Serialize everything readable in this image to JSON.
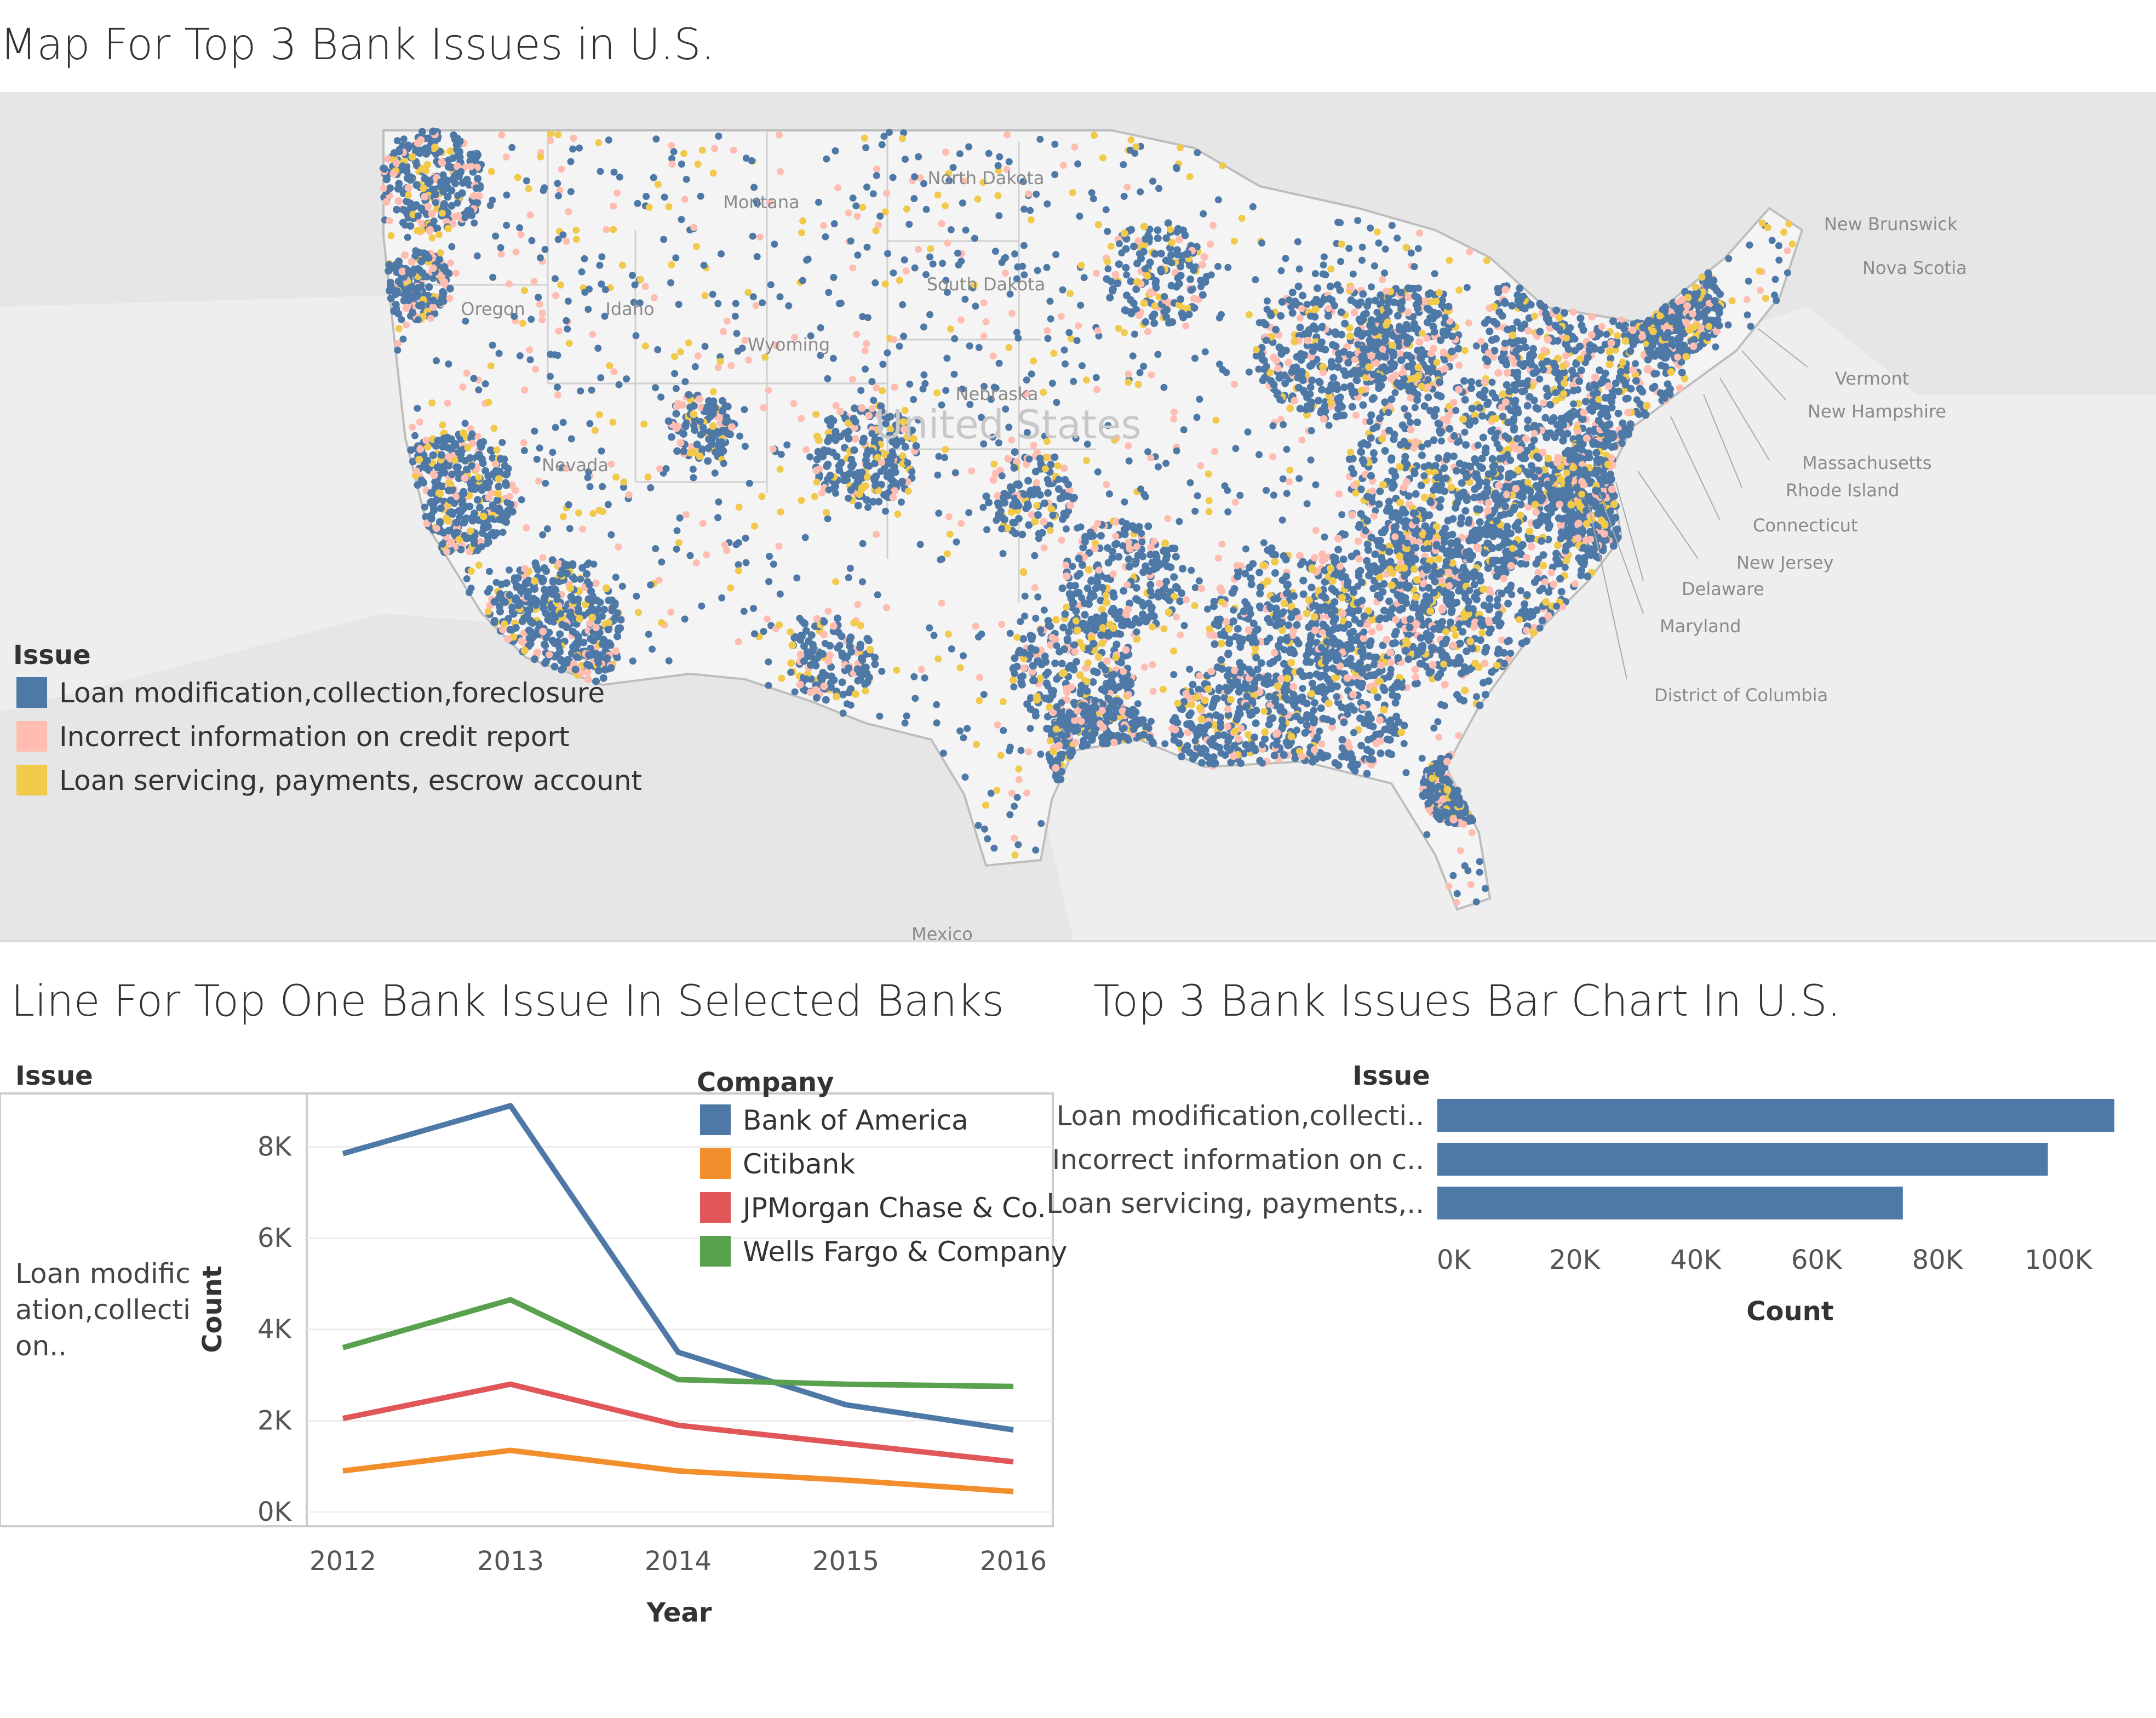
{
  "map": {
    "title": "Map For Top  3  Bank Issues in U.S.",
    "legend": {
      "title": "Issue",
      "items": [
        {
          "label": "Loan modification,collection,foreclosure",
          "color": "#4e79a7"
        },
        {
          "label": "Incorrect information on credit report",
          "color": "#ffbcb0"
        },
        {
          "label": "Loan servicing, payments, escrow account",
          "color": "#f1c94b"
        }
      ]
    },
    "labels": [
      "North Dakota",
      "South Dakota",
      "Montana",
      "Idaho",
      "Oregon",
      "Wyoming",
      "Nebraska",
      "Nevada",
      "United States",
      "New Brunswick",
      "Nova Scotia",
      "Vermont",
      "New Hampshire",
      "Massachusetts",
      "Rhode Island",
      "Connecticut",
      "New Jersey",
      "Delaware",
      "Maryland",
      "District of Columbia",
      "Mexico"
    ]
  },
  "chart_data": [
    {
      "type": "line",
      "title": "Line For Top One Bank Issue In Selected Banks",
      "row_header": "Issue",
      "row_label": "Loan modification,collection..",
      "xlabel": "Year",
      "ylabel": "Count",
      "x": [
        2012,
        2013,
        2014,
        2015,
        2016
      ],
      "ylim": [
        0,
        9000
      ],
      "yticks": [
        "0K",
        "2K",
        "4K",
        "6K",
        "8K"
      ],
      "legend_title": "Company",
      "series": [
        {
          "name": "Bank of America",
          "color": "#4e79a7",
          "values": [
            7850,
            8900,
            3500,
            2350,
            1800
          ]
        },
        {
          "name": "Citibank",
          "color": "#f28e2b",
          "values": [
            900,
            1350,
            900,
            700,
            450
          ]
        },
        {
          "name": "JPMorgan Chase & Co.",
          "color": "#e15759",
          "values": [
            2050,
            2800,
            1900,
            1500,
            1100
          ]
        },
        {
          "name": "Wells Fargo & Company",
          "color": "#59a14f",
          "values": [
            3600,
            4650,
            2900,
            2800,
            2750
          ]
        }
      ]
    },
    {
      "type": "bar",
      "orientation": "horizontal",
      "title": "Top  3  Bank Issues Bar Chart In U.S.",
      "row_header": "Issue",
      "categories": [
        "Loan modification,collecti..",
        "Incorrect information on c..",
        "Loan servicing, payments,.."
      ],
      "values": [
        112000,
        101000,
        77000
      ],
      "color": "#4e79a7",
      "xlabel": "Count",
      "xlim": [
        0,
        112000
      ],
      "xticks": [
        "0K",
        "20K",
        "40K",
        "60K",
        "80K",
        "100K"
      ]
    }
  ]
}
